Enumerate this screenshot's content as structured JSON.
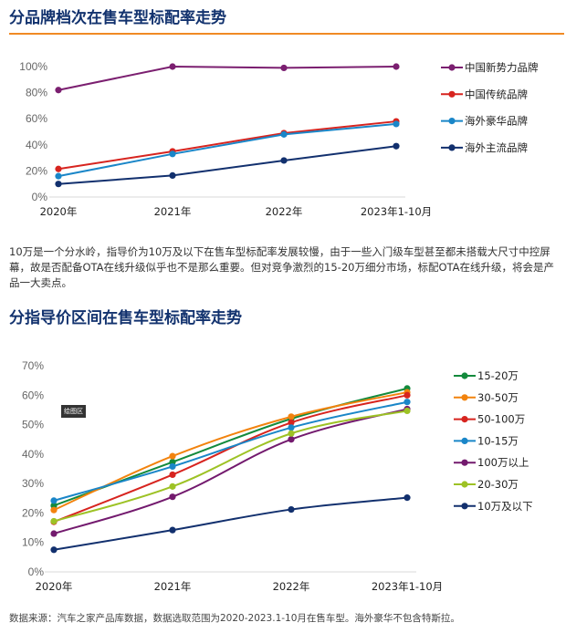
{
  "section1": {
    "title": "分品牌档次在售车型标配率走势"
  },
  "paragraph": "10万是一个分水岭，指导价为10万及以下在售车型标配率发展较慢，由于一些入门级车型甚至都未搭载大尺寸中控屏幕，故是否配备OTA在线升级似乎也不是那么重要。但对竞争激烈的15-20万细分市场，标配OTA在线升级，将会是产品一大卖点。",
  "section2": {
    "title": "分指导价区间在售车型标配率走势"
  },
  "tooltip": "绘图区",
  "footnote": "数据来源：汽车之家产品库数据，数据选取范围为2020-2023.1-10月在售车型。海外豪华不包含特斯拉。",
  "chart_data": [
    {
      "type": "line",
      "categories": [
        "2020年",
        "2021年",
        "2022年",
        "2023年1-10月"
      ],
      "ylim": [
        0,
        100
      ],
      "yticks": [
        "0%",
        "20%",
        "40%",
        "60%",
        "80%",
        "100%"
      ],
      "legend": "right",
      "series": [
        {
          "name": "中国新势力品牌",
          "color": "#7b1f70",
          "values": [
            82,
            100,
            99,
            100
          ]
        },
        {
          "name": "中国传统品牌",
          "color": "#d7241f",
          "values": [
            21.5,
            35,
            49,
            58
          ]
        },
        {
          "name": "海外豪华品牌",
          "color": "#1a86c8",
          "values": [
            16,
            33,
            48,
            56
          ]
        },
        {
          "name": "海外主流品牌",
          "color": "#12306e",
          "values": [
            10,
            16.5,
            28,
            39
          ]
        }
      ]
    },
    {
      "type": "line",
      "smooth": true,
      "categories": [
        "2020年",
        "2021年",
        "2022年",
        "2023年1-10月"
      ],
      "ylim": [
        0,
        70
      ],
      "yticks": [
        "0%",
        "10%",
        "20%",
        "30%",
        "40%",
        "50%",
        "60%",
        "70%"
      ],
      "legend": "right",
      "series": [
        {
          "name": "15-20万",
          "color": "#138a3c",
          "values": [
            22.5,
            37.3,
            52,
            62.3
          ]
        },
        {
          "name": "30-50万",
          "color": "#f2830e",
          "values": [
            21,
            39.3,
            52.7,
            61
          ]
        },
        {
          "name": "50-100万",
          "color": "#d7241f",
          "values": [
            17,
            33,
            50.7,
            60
          ]
        },
        {
          "name": "10-15万",
          "color": "#1a86c8",
          "values": [
            24.2,
            35.8,
            49,
            57.7
          ]
        },
        {
          "name": "100万以上",
          "color": "#731a6e",
          "values": [
            13,
            25.5,
            45,
            55.3
          ]
        },
        {
          "name": "20-30万",
          "color": "#9dc225",
          "values": [
            17.2,
            29,
            47,
            54.7
          ]
        },
        {
          "name": "10万及以下",
          "color": "#12306e",
          "values": [
            7.5,
            14.2,
            21.2,
            25.2
          ]
        }
      ]
    }
  ]
}
